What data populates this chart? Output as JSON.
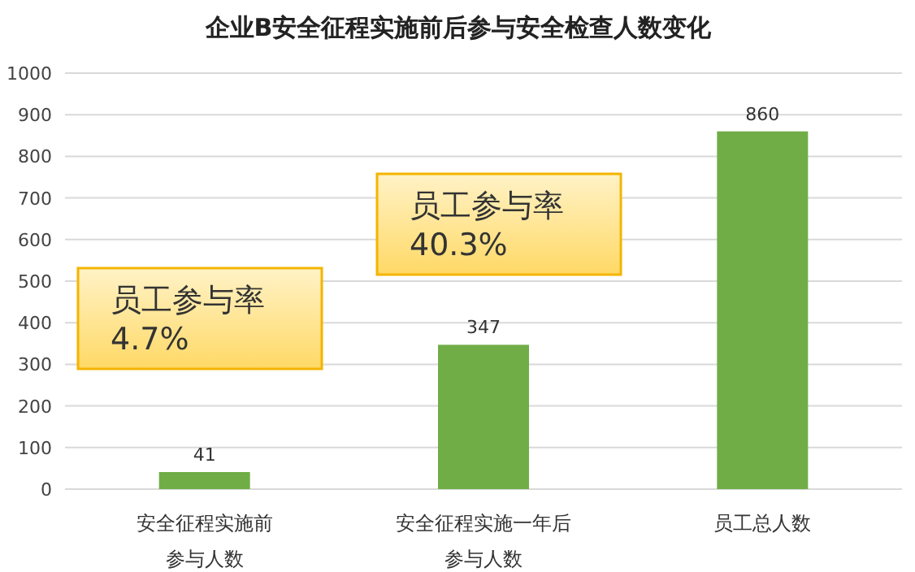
{
  "chart_data": {
    "type": "bar",
    "title": "企业B安全征程实施前后参与安全检查人数变化",
    "categories": [
      "安全征程实施前参与人数",
      "安全征程实施一年后参与人数",
      "员工总人数"
    ],
    "values": [
      41,
      347,
      860
    ],
    "color": "#70ad47",
    "ylim": [
      0,
      1000
    ],
    "yticks": [
      0,
      100,
      200,
      300,
      400,
      500,
      600,
      700,
      800,
      900,
      1000
    ],
    "grid": "y",
    "data_labels": true,
    "annotations": [
      "员工参与率\n4.7%",
      "员工参与率\n40.3%"
    ]
  }
}
